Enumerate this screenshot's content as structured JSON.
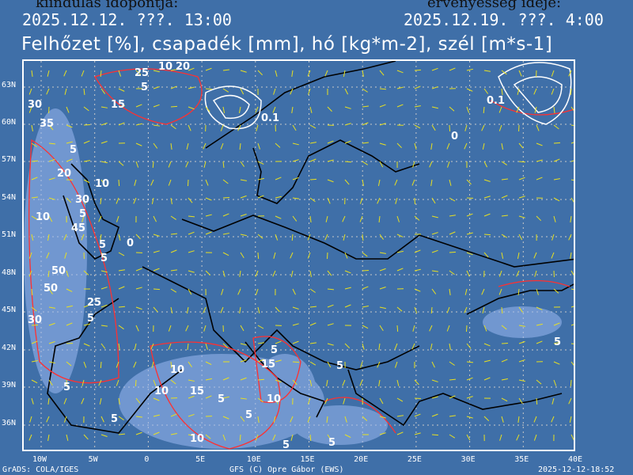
{
  "header": {
    "left_label": "kiindulás időpontja:",
    "left_date": "2025.12.12. ???. 13:00",
    "right_label": "érvényesség ideje:",
    "right_date": "2025.12.19. ???. 4:00"
  },
  "title": "Felhőzet [%], csapadék [mm], hó [kg*m-2], szél [m*s-1]",
  "lat_labels": [
    "63N",
    "60N",
    "57N",
    "54N",
    "51N",
    "48N",
    "45N",
    "42N",
    "39N",
    "36N"
  ],
  "lon_labels": [
    "10W",
    "5W",
    "0",
    "5E",
    "10E",
    "15E",
    "20E",
    "25E",
    "30E",
    "35E",
    "40E"
  ],
  "footer": {
    "left": "GrADS: COLA/IGES",
    "center": "GFS (C) Opre Gábor (EWS)",
    "right": "2025-12-12-18:52"
  },
  "contour_labels": [
    "25",
    "10",
    "20",
    "5",
    "30",
    "15",
    "35",
    "0.1",
    "5",
    "20",
    "10",
    "30",
    "5",
    "10",
    "45",
    "50",
    "5",
    "0",
    "5",
    "50",
    "25",
    "30",
    "5",
    "0.1",
    "0",
    "5",
    "5",
    "15",
    "5",
    "10",
    "15",
    "5",
    "10",
    "5",
    "10",
    "5",
    "5",
    "10",
    "5",
    "5"
  ],
  "colors": {
    "background": "#3f6fa8",
    "precip_contour": "#ff3030",
    "snow_contour": "#ffffff",
    "wind": "#e8e020",
    "cloud": "#9ab8f0",
    "borders": "#000000"
  }
}
